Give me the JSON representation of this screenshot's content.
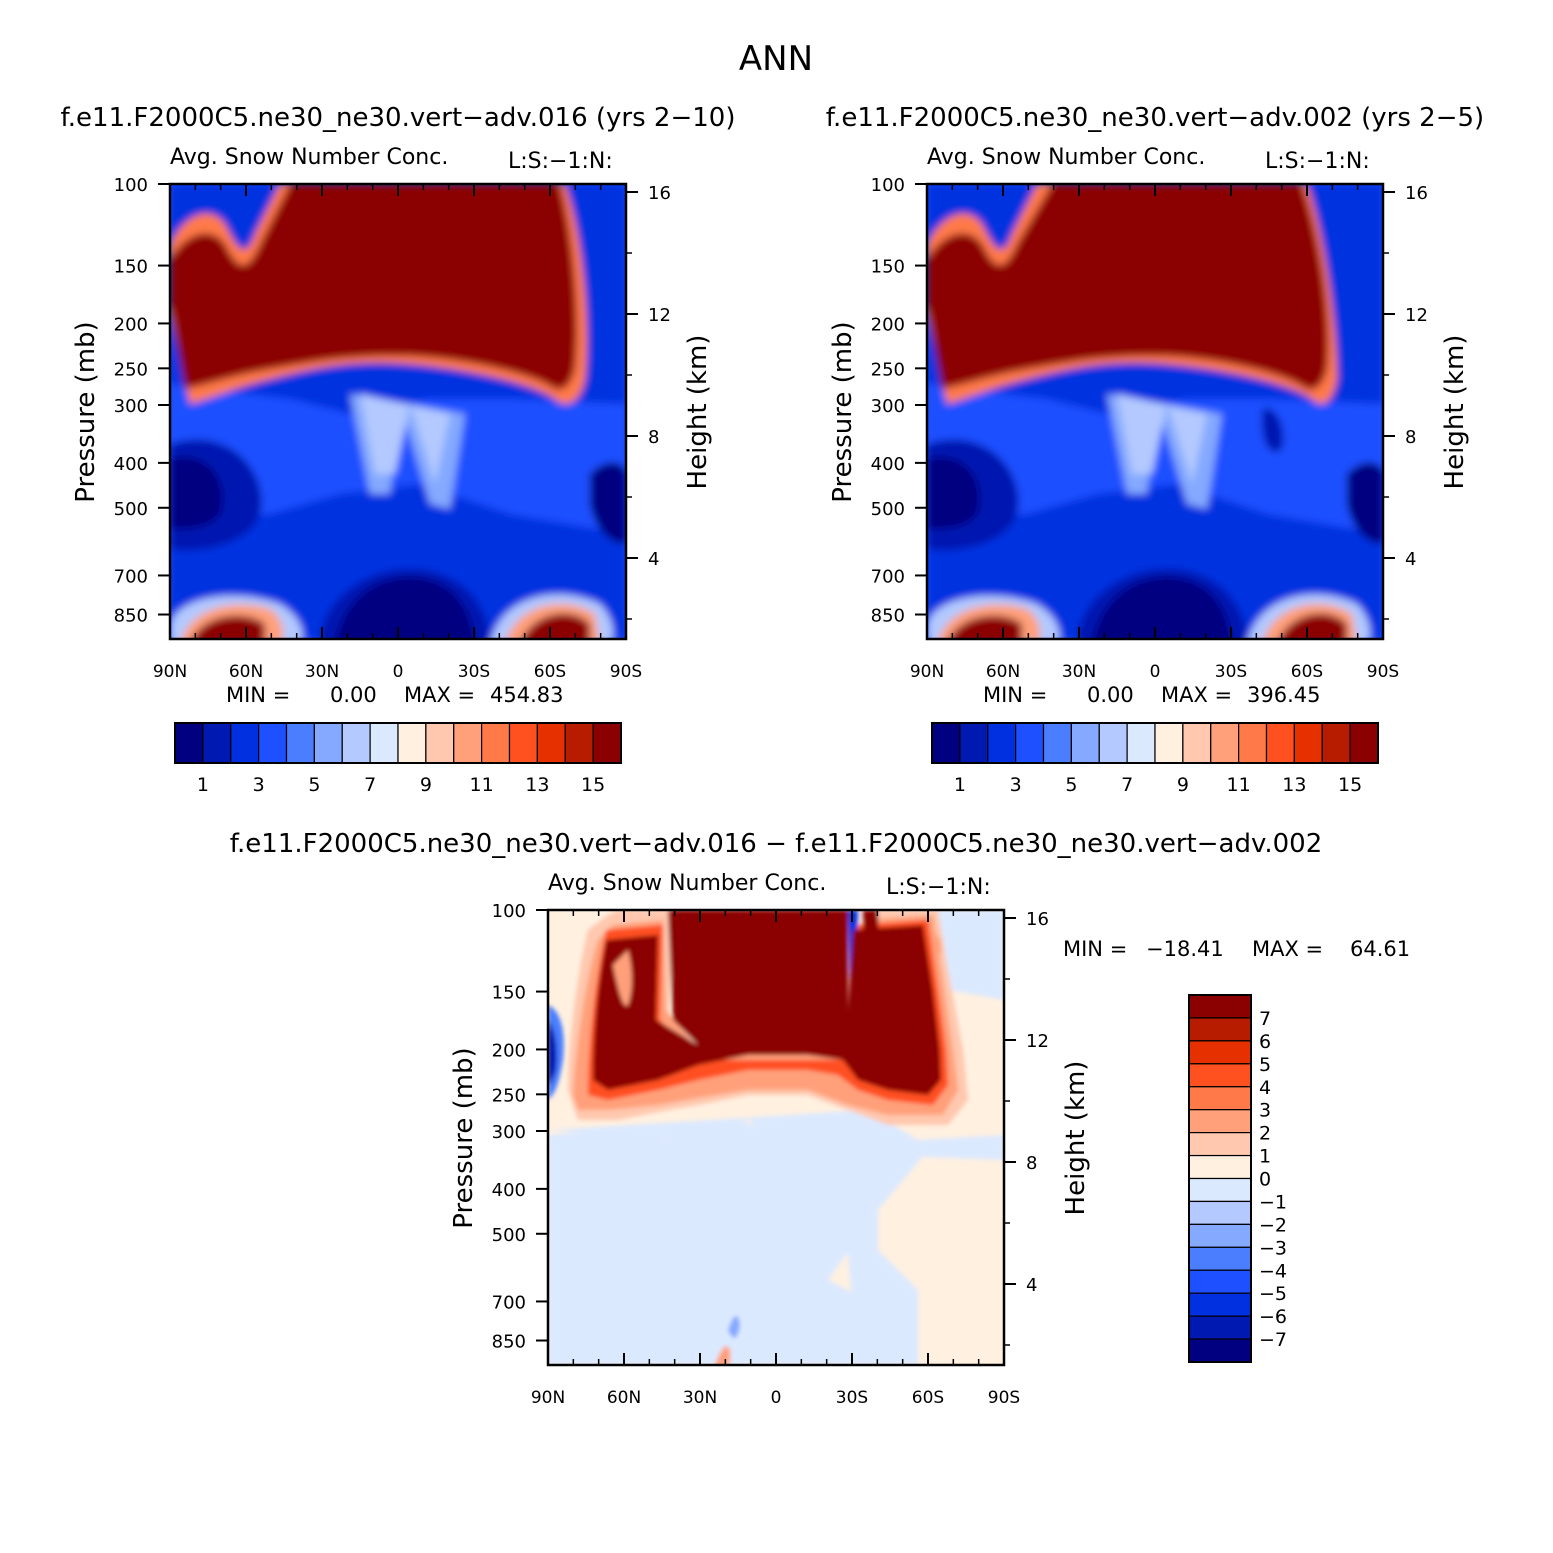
{
  "figure": {
    "title": "ANN",
    "colormap_full": [
      "#000080",
      "#0019b0",
      "#0030e0",
      "#1f50ff",
      "#4a7eff",
      "#84a9ff",
      "#b3c9ff",
      "#dbe9ff",
      "#fff0e0",
      "#ffc8af",
      "#ffa07a",
      "#ff7a48",
      "#ff5020",
      "#e63000",
      "#b71c00",
      "#8b0000"
    ],
    "colormap_diff": [
      "#000080",
      "#0019b0",
      "#0030e0",
      "#1f50ff",
      "#4a7eff",
      "#84a9ff",
      "#b3c9ff",
      "#dbe9ff",
      "#fff0e0",
      "#ffc8af",
      "#ffa07a",
      "#ff7a48",
      "#ff5020",
      "#e63000",
      "#b71c00",
      "#8b0000"
    ]
  },
  "chart_data": [
    {
      "type": "heatmap",
      "case_title": "f.e11.F2000C5.ne30_ne30.vert−adv.016 (yrs 2−10)",
      "title": "Avg. Snow Number Conc.",
      "title_right": "L:S:−1:N:",
      "ylabel": "Pressure (mb)",
      "ylabel_right": "Height (km)",
      "x_ticks": [
        "90N",
        "60N",
        "30N",
        "0",
        "30S",
        "60S",
        "90S"
      ],
      "y_ticks": [
        100,
        150,
        200,
        250,
        300,
        400,
        500,
        700,
        850
      ],
      "y_right_ticks": [
        16,
        12,
        8,
        4
      ],
      "ylim": [
        100,
        1000
      ],
      "min_label": "MIN =",
      "min_value": "0.00",
      "max_label": "MAX =",
      "max_value": "454.83",
      "colorbar_labels": [
        "1",
        "3",
        "5",
        "7",
        "9",
        "11",
        "13",
        "15"
      ],
      "field": "full_a"
    },
    {
      "type": "heatmap",
      "case_title": "f.e11.F2000C5.ne30_ne30.vert−adv.002 (yrs 2−5)",
      "title": "Avg. Snow Number Conc.",
      "title_right": "L:S:−1:N:",
      "ylabel": "Pressure (mb)",
      "ylabel_right": "Height (km)",
      "x_ticks": [
        "90N",
        "60N",
        "30N",
        "0",
        "30S",
        "60S",
        "90S"
      ],
      "y_ticks": [
        100,
        150,
        200,
        250,
        300,
        400,
        500,
        700,
        850
      ],
      "y_right_ticks": [
        16,
        12,
        8,
        4
      ],
      "ylim": [
        100,
        1000
      ],
      "min_label": "MIN =",
      "min_value": "0.00",
      "max_label": "MAX =",
      "max_value": "396.45",
      "colorbar_labels": [
        "1",
        "3",
        "5",
        "7",
        "9",
        "11",
        "13",
        "15"
      ],
      "field": "full_b"
    },
    {
      "type": "heatmap",
      "case_title": "f.e11.F2000C5.ne30_ne30.vert−adv.016 − f.e11.F2000C5.ne30_ne30.vert−adv.002",
      "title": "Avg. Snow Number Conc.",
      "title_right": "L:S:−1:N:",
      "ylabel": "Pressure (mb)",
      "ylabel_right": "Height (km)",
      "x_ticks": [
        "90N",
        "60N",
        "30N",
        "0",
        "30S",
        "60S",
        "90S"
      ],
      "y_ticks": [
        100,
        150,
        200,
        250,
        300,
        400,
        500,
        700,
        850
      ],
      "y_right_ticks": [
        16,
        12,
        8,
        4
      ],
      "ylim": [
        100,
        1000
      ],
      "min_label": "MIN =",
      "min_value": "−18.41",
      "max_label": "MAX =",
      "max_value": "64.61",
      "colorbar_labels": [
        "7",
        "6",
        "5",
        "4",
        "3",
        "2",
        "1",
        "0",
        "−1",
        "−2",
        "−3",
        "−4",
        "−5",
        "−6",
        "−7"
      ],
      "field": "diff"
    }
  ]
}
